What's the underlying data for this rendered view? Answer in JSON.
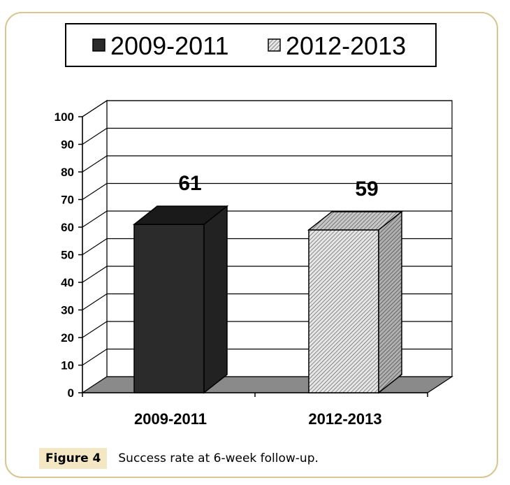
{
  "chart_data": {
    "type": "bar",
    "categories": [
      "2009-2011",
      "2012-2013"
    ],
    "series": [
      {
        "name": "2009-2011",
        "values": [
          61,
          null
        ]
      },
      {
        "name": "2012-2013",
        "values": [
          null,
          59
        ]
      }
    ],
    "values": [
      61,
      59
    ],
    "data_labels": [
      "61",
      "59"
    ],
    "legend": [
      "2009-2011",
      "2012-2013"
    ],
    "legend_position": "top",
    "ylim": [
      0,
      100
    ],
    "yticks": [
      "0",
      "10",
      "20",
      "30",
      "40",
      "50",
      "60",
      "70",
      "80",
      "90",
      "100"
    ],
    "grid": true,
    "three_d": true,
    "colors": {
      "series1": "#2b2b2b",
      "series2": "#d6d6d6",
      "floor": "#8a8a8a"
    }
  },
  "caption": {
    "label": "Figure 4",
    "text": "Success rate at 6-week follow-up."
  }
}
